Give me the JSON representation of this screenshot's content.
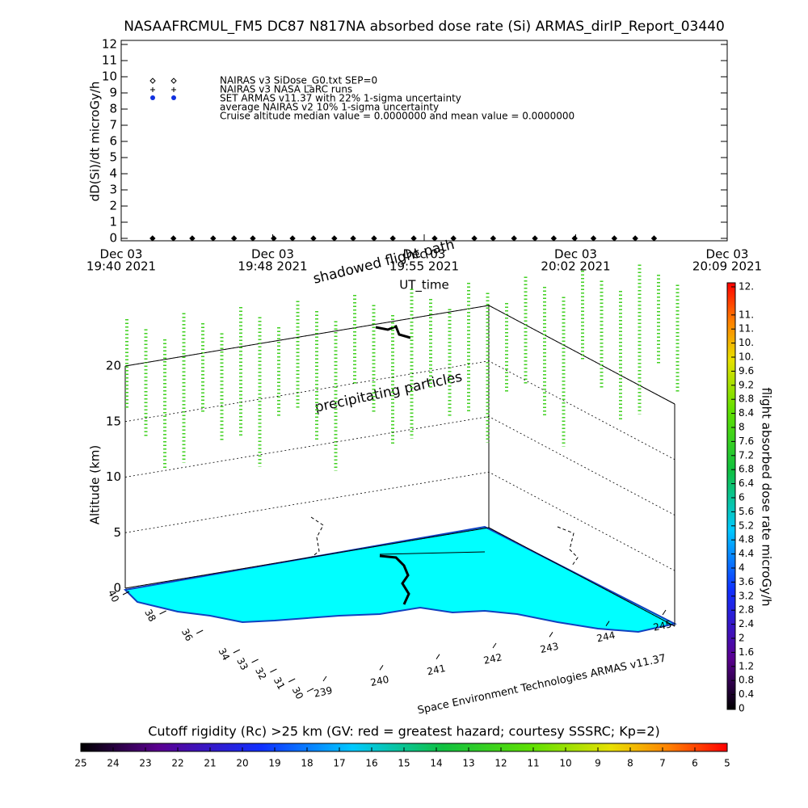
{
  "title": "NASAAFRCMUL_FM5 DC87 N817NA absorbed dose rate (Si) ARMAS_dirIP_Report_03440",
  "chart_data": [
    {
      "type": "scatter",
      "y_label": "dD(Si)/dt microGy/h",
      "x_label": "UT_time",
      "xlim": [
        0,
        29
      ],
      "ylim": [
        -0.15,
        12.25
      ],
      "xticks": [
        {
          "value": 0,
          "label": [
            "Dec 03",
            "19:40 2021"
          ]
        },
        {
          "value": 7.25,
          "label": [
            "Dec 03",
            "19:48 2021"
          ]
        },
        {
          "value": 14.5,
          "label": [
            "Dec 03",
            "19:55 2021"
          ]
        },
        {
          "value": 21.75,
          "label": [
            "Dec 03",
            "20:02 2021"
          ]
        },
        {
          "value": 29,
          "label": [
            "Dec 03",
            "20:09 2021"
          ]
        }
      ],
      "yticks": [
        0,
        1,
        2,
        3,
        4,
        5,
        6,
        7,
        8,
        9,
        10,
        11,
        12
      ],
      "legend": [
        "NAIRAS v3 SiDose_G0.txt SEP=0",
        "NAIRAS v3 NASA LaRC runs",
        "SET ARMAS v11.37 with 22% 1-sigma uncertainty",
        "average NAIRAS v2 10% 1-sigma uncertainty",
        "Cruise altitude median value = 0.0000000 and mean value = 0.0000000"
      ],
      "series": [
        {
          "name": "NAIRAS v3 SiDose_G0.txt SEP=0",
          "color": "#000000",
          "x": [
            1.5,
            2.5,
            3.4,
            4.4,
            5.4,
            6.3,
            7.3,
            8.2,
            9.2,
            10.2,
            11.1,
            12.1,
            13.0,
            14.0,
            15.0,
            15.9,
            16.9,
            17.8,
            18.8,
            19.8,
            20.7,
            21.7,
            22.6,
            23.6,
            24.6,
            25.5
          ],
          "values": [
            0,
            0,
            0,
            0,
            0,
            0,
            0,
            0,
            0,
            0,
            0,
            0,
            0,
            0,
            0,
            0,
            0,
            0,
            0,
            0,
            0,
            0,
            0,
            0,
            0,
            0
          ]
        }
      ]
    },
    {
      "type": "scatter3d",
      "z_label": "Altitude (km)",
      "zlim": [
        0,
        20
      ],
      "zticks": [
        0,
        5,
        10,
        15,
        20
      ],
      "lat_lim": [
        30,
        40
      ],
      "lat_ticks": [
        40,
        38,
        36,
        34,
        33,
        32,
        31,
        30
      ],
      "lon_lim": [
        239,
        245
      ],
      "lon_ticks": [
        239,
        240,
        241,
        242,
        243,
        244,
        245
      ],
      "annotations": [
        "shadowed flight path",
        "precipitating particles",
        "Space Environment Technologies ARMAS v11.37"
      ]
    },
    {
      "type": "colorbar",
      "label": "flight absorbed dose rate microGy/h",
      "lim": [
        0,
        12
      ],
      "ticks": [
        0.0,
        0.4,
        0.8,
        1.2,
        1.6,
        2.0,
        2.4,
        2.8,
        3.2,
        3.6,
        4.0,
        4.4,
        4.8,
        5.2,
        5.6,
        6.0,
        6.4,
        6.8,
        7.2,
        7.6,
        8.0,
        8.4,
        8.8,
        9.2,
        9.6,
        {
          "value": 10.0,
          "label": "10."
        },
        {
          "value": 10.4,
          "label": "10."
        },
        {
          "value": 10.8,
          "label": "11."
        },
        {
          "value": 11.2,
          "label": "11."
        },
        {
          "value": 12.0,
          "label": "12."
        }
      ]
    },
    {
      "type": "colorbar",
      "label": "Cutoff rigidity (Rc) >25 km (GV: red = greatest hazard; courtesy SSSRC; Kp=2)",
      "lim": [
        25,
        5
      ],
      "ticks": [
        25,
        24,
        23,
        22,
        21,
        20,
        19,
        18,
        17,
        16,
        15,
        14,
        13,
        12,
        11,
        10,
        9,
        8,
        7,
        6,
        5
      ]
    }
  ]
}
